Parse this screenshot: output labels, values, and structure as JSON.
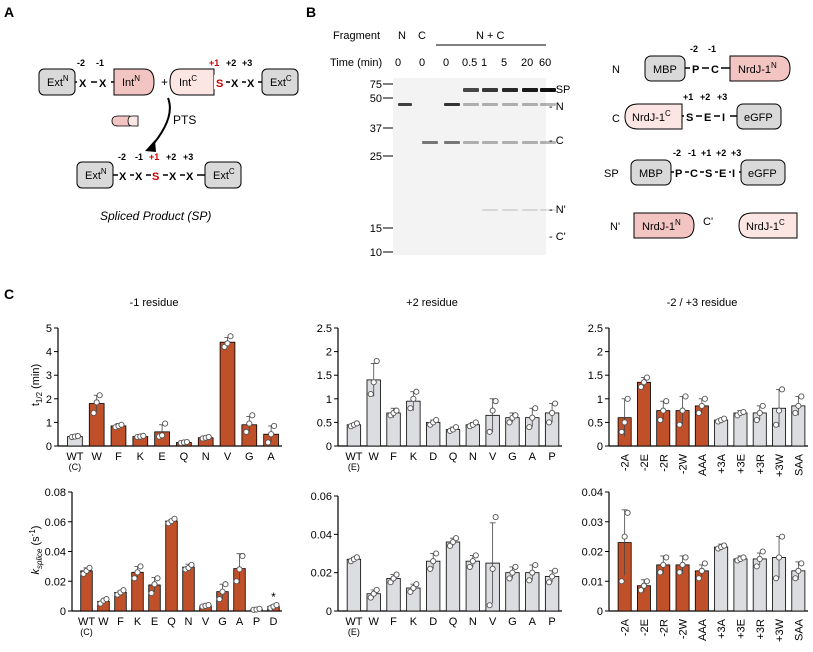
{
  "panel_labels": {
    "a": "A",
    "b": "B",
    "c": "C"
  },
  "scheme_a": {
    "ext_n": "Ext",
    "ext_n_sup": "N",
    "int_n": "Int",
    "int_n_sup": "N",
    "int_c": "Int",
    "int_c_sup": "C",
    "ext_c": "Ext",
    "ext_c_sup": "C",
    "plus": "+",
    "pos_minus2": "-2",
    "pos_minus1": "-1",
    "pos_plus1": "+1",
    "pos_plus2": "+2",
    "pos_plus3": "+3",
    "res_x": "X",
    "res_s": "S",
    "pts_label": "PTS",
    "product_caption": "Spliced Product (SP)"
  },
  "gel_b": {
    "fragment_label": "Fragment",
    "time_label": "Time (min)",
    "lanes_fragment": [
      "N",
      "C",
      "N + C"
    ],
    "time_values": [
      "0",
      "0",
      "0",
      "0.5",
      "1",
      "5",
      "20",
      "60"
    ],
    "mw_markers": [
      "75",
      "50",
      "37",
      "25",
      "15",
      "10"
    ],
    "band_labels": [
      "- SP",
      "- N",
      "- C",
      "- N'",
      "- C'"
    ]
  },
  "constructs_b": {
    "n_label": "N",
    "c_label": "C",
    "sp_label": "SP",
    "n_prime_label": "N'",
    "c_prime_label": "C'",
    "mbp": "MBP",
    "egfp": "eGFP",
    "nrdj_n": "NrdJ-1",
    "nrdj_n_sup": "N",
    "nrdj_c": "NrdJ-1",
    "nrdj_c_sup": "C",
    "res_p": "P",
    "res_c": "C",
    "res_s": "S",
    "res_e": "E",
    "res_i": "I",
    "pos_minus2": "-2",
    "pos_minus1": "-1",
    "pos_plus1": "+1",
    "pos_plus2": "+2",
    "pos_plus3": "+3"
  },
  "colors": {
    "mutant": "#c0502a",
    "wildtype": "#dcdde1",
    "wt_top": "#e7e8ec",
    "n_intein": "#f2c4c2",
    "c_intein": "#fbe6e3",
    "ext_box": "#d9d9d9",
    "red_text": "#cc0000"
  },
  "chart_data": [
    {
      "type": "bar",
      "title": "-1 residue",
      "ylabel": "t1/2 (min)",
      "ylim": [
        0,
        5
      ],
      "yticks": [
        "0",
        "1",
        "2",
        "3",
        "4",
        "5"
      ],
      "categories": [
        "WT\n(C)",
        "W",
        "F",
        "K",
        "E",
        "Q",
        "N",
        "V",
        "G",
        "A"
      ],
      "values": [
        0.4,
        1.8,
        0.85,
        0.4,
        0.6,
        0.15,
        0.35,
        4.4,
        0.9,
        0.5
      ],
      "errors": [
        0.05,
        0.35,
        0.1,
        0.05,
        0.3,
        0.03,
        0.05,
        0.2,
        0.35,
        0.35
      ],
      "points": [
        [
          0.38,
          0.4,
          0.42
        ],
        [
          1.4,
          1.85,
          2.15
        ],
        [
          0.8,
          0.85,
          0.9
        ],
        [
          0.38,
          0.4,
          0.43
        ],
        [
          0.4,
          0.45,
          0.95
        ],
        [
          0.13,
          0.15,
          0.17
        ],
        [
          0.32,
          0.35,
          0.38
        ],
        [
          4.2,
          4.35,
          4.65
        ],
        [
          0.6,
          0.95,
          1.3
        ],
        [
          0.15,
          0.5,
          0.85
        ]
      ],
      "bar_colors": [
        "wildtype",
        "mutant",
        "mutant",
        "mutant",
        "mutant",
        "mutant",
        "mutant",
        "mutant",
        "mutant",
        "mutant"
      ]
    },
    {
      "type": "bar",
      "title": "+2 residue",
      "ylabel": "",
      "ylim": [
        0,
        2.5
      ],
      "yticks": [
        "0",
        "0.5",
        "1",
        "1.5",
        "2",
        "2.5"
      ],
      "categories": [
        "WT\n(E)",
        "W",
        "F",
        "K",
        "D",
        "Q",
        "N",
        "V",
        "G",
        "A",
        "P"
      ],
      "values": [
        0.45,
        1.4,
        0.7,
        0.95,
        0.5,
        0.35,
        0.45,
        0.65,
        0.6,
        0.6,
        0.7
      ],
      "errors": [
        0.03,
        0.35,
        0.1,
        0.2,
        0.05,
        0.05,
        0.05,
        0.35,
        0.1,
        0.2,
        0.2
      ],
      "points": [
        [
          0.42,
          0.45,
          0.48
        ],
        [
          1.1,
          1.35,
          1.8
        ],
        [
          0.65,
          0.7,
          0.75
        ],
        [
          0.8,
          1.0,
          1.15
        ],
        [
          0.45,
          0.5,
          0.55
        ],
        [
          0.32,
          0.35,
          0.4
        ],
        [
          0.42,
          0.45,
          0.5
        ],
        [
          0.3,
          0.75,
          0.95
        ],
        [
          0.5,
          0.6,
          0.65
        ],
        [
          0.4,
          0.6,
          0.8
        ],
        [
          0.5,
          0.7,
          0.9
        ]
      ],
      "bar_colors": [
        "wildtype",
        "wildtype",
        "wildtype",
        "wildtype",
        "wildtype",
        "wildtype",
        "wildtype",
        "wildtype",
        "wildtype",
        "wildtype",
        "wildtype"
      ]
    },
    {
      "type": "bar",
      "title": "-2 / +3 residue",
      "ylabel": "",
      "ylim": [
        0,
        2.5
      ],
      "yticks": [
        "0",
        "0.5",
        "1",
        "1.5",
        "2",
        "2.5"
      ],
      "categories": [
        "-2A",
        "-2E",
        "-2R",
        "-2W",
        "AAA",
        "+3A",
        "+3E",
        "+3R",
        "+3W",
        "SAA"
      ],
      "values": [
        0.6,
        1.35,
        0.75,
        0.75,
        0.85,
        0.55,
        0.7,
        0.7,
        0.8,
        0.85
      ],
      "errors": [
        0.4,
        0.1,
        0.2,
        0.3,
        0.15,
        0.03,
        0.05,
        0.15,
        0.4,
        0.2
      ],
      "points": [
        [
          0.3,
          0.5,
          1.0
        ],
        [
          1.25,
          1.35,
          1.45
        ],
        [
          0.55,
          0.75,
          0.95
        ],
        [
          0.45,
          0.75,
          1.05
        ],
        [
          0.7,
          0.85,
          1.0
        ],
        [
          0.52,
          0.55,
          0.58
        ],
        [
          0.65,
          0.7,
          0.72
        ],
        [
          0.55,
          0.7,
          0.85
        ],
        [
          0.45,
          0.75,
          1.2
        ],
        [
          0.7,
          0.85,
          1.05
        ]
      ],
      "bar_colors": [
        "mutant",
        "mutant",
        "mutant",
        "mutant",
        "mutant",
        "wildtype",
        "wildtype",
        "wildtype",
        "wildtype",
        "wildtype"
      ]
    },
    {
      "type": "bar",
      "title": "",
      "ylabel": "ksplice (s-1)",
      "ylim": [
        0,
        0.08
      ],
      "yticks": [
        "0",
        "0.02",
        "0.04",
        "0.06",
        "0.08"
      ],
      "categories": [
        "WT\n(C)",
        "W",
        "F",
        "K",
        "E",
        "Q",
        "N",
        "V",
        "G",
        "A",
        "P",
        "D"
      ],
      "values": [
        0.027,
        0.0065,
        0.0125,
        0.026,
        0.0175,
        0.0605,
        0.0295,
        0.0035,
        0.013,
        0.0285,
        0.001,
        0.003
      ],
      "errors": [
        0.002,
        0.001,
        0.001,
        0.004,
        0.005,
        0.001,
        0.002,
        0.001,
        0.005,
        0.01,
        0.001,
        0.001
      ],
      "points": [
        [
          0.025,
          0.027,
          0.029
        ],
        [
          0.005,
          0.007,
          0.008
        ],
        [
          0.011,
          0.0125,
          0.014
        ],
        [
          0.022,
          0.026,
          0.03
        ],
        [
          0.012,
          0.018,
          0.022
        ],
        [
          0.059,
          0.0605,
          0.062
        ],
        [
          0.028,
          0.029,
          0.031
        ],
        [
          0.003,
          0.0035,
          0.004
        ],
        [
          0.008,
          0.013,
          0.018
        ],
        [
          0.02,
          0.028,
          0.037
        ],
        [
          0.0008,
          0.001,
          0.0015
        ],
        [
          0.002,
          0.003,
          0.004
        ]
      ],
      "bar_colors": [
        "mutant",
        "mutant",
        "mutant",
        "mutant",
        "mutant",
        "mutant",
        "mutant",
        "mutant",
        "mutant",
        "mutant",
        "mutant",
        "mutant"
      ],
      "annotations": [
        {
          "category": "D",
          "text": "*"
        }
      ]
    },
    {
      "type": "bar",
      "title": "",
      "ylabel": "",
      "ylim": [
        0,
        0.06
      ],
      "yticks": [
        "0",
        "0.02",
        "0.04",
        "0.06"
      ],
      "categories": [
        "WT\n(E)",
        "W",
        "F",
        "K",
        "D",
        "Q",
        "N",
        "V",
        "G",
        "A",
        "P"
      ],
      "values": [
        0.027,
        0.009,
        0.017,
        0.012,
        0.026,
        0.036,
        0.026,
        0.025,
        0.02,
        0.02,
        0.018
      ],
      "errors": [
        0.001,
        0.002,
        0.002,
        0.002,
        0.004,
        0.002,
        0.003,
        0.021,
        0.003,
        0.004,
        0.003
      ],
      "points": [
        [
          0.026,
          0.027,
          0.028
        ],
        [
          0.007,
          0.009,
          0.011
        ],
        [
          0.015,
          0.017,
          0.019
        ],
        [
          0.01,
          0.012,
          0.014
        ],
        [
          0.022,
          0.026,
          0.03
        ],
        [
          0.034,
          0.036,
          0.038
        ],
        [
          0.023,
          0.026,
          0.029
        ],
        [
          0.003,
          0.022,
          0.049
        ],
        [
          0.017,
          0.02,
          0.023
        ],
        [
          0.016,
          0.02,
          0.024
        ],
        [
          0.015,
          0.018,
          0.021
        ]
      ],
      "bar_colors": [
        "wildtype",
        "wildtype",
        "wildtype",
        "wildtype",
        "wildtype",
        "wildtype",
        "wildtype",
        "wildtype",
        "wildtype",
        "wildtype",
        "wildtype"
      ]
    },
    {
      "type": "bar",
      "title": "",
      "ylabel": "",
      "ylim": [
        0,
        0.04
      ],
      "yticks": [
        "0",
        "0.01",
        "0.02",
        "0.03",
        "0.04"
      ],
      "categories": [
        "-2A",
        "-2E",
        "-2R",
        "-2W",
        "AAA",
        "+3A",
        "+3E",
        "+3R",
        "+3W",
        "SAA"
      ],
      "values": [
        0.023,
        0.0085,
        0.0155,
        0.0155,
        0.0135,
        0.0215,
        0.0175,
        0.0175,
        0.018,
        0.0135
      ],
      "errors": [
        0.011,
        0.002,
        0.003,
        0.003,
        0.002,
        0.001,
        0.001,
        0.002,
        0.007,
        0.003
      ],
      "points": [
        [
          0.01,
          0.025,
          0.033
        ],
        [
          0.007,
          0.0085,
          0.01
        ],
        [
          0.013,
          0.0155,
          0.018
        ],
        [
          0.013,
          0.0155,
          0.018
        ],
        [
          0.011,
          0.0135,
          0.016
        ],
        [
          0.021,
          0.0215,
          0.022
        ],
        [
          0.017,
          0.0175,
          0.018
        ],
        [
          0.015,
          0.0175,
          0.02
        ],
        [
          0.011,
          0.018,
          0.025
        ],
        [
          0.011,
          0.0135,
          0.016
        ]
      ],
      "bar_colors": [
        "mutant",
        "mutant",
        "mutant",
        "mutant",
        "mutant",
        "wildtype",
        "wildtype",
        "wildtype",
        "wildtype",
        "wildtype"
      ]
    }
  ]
}
